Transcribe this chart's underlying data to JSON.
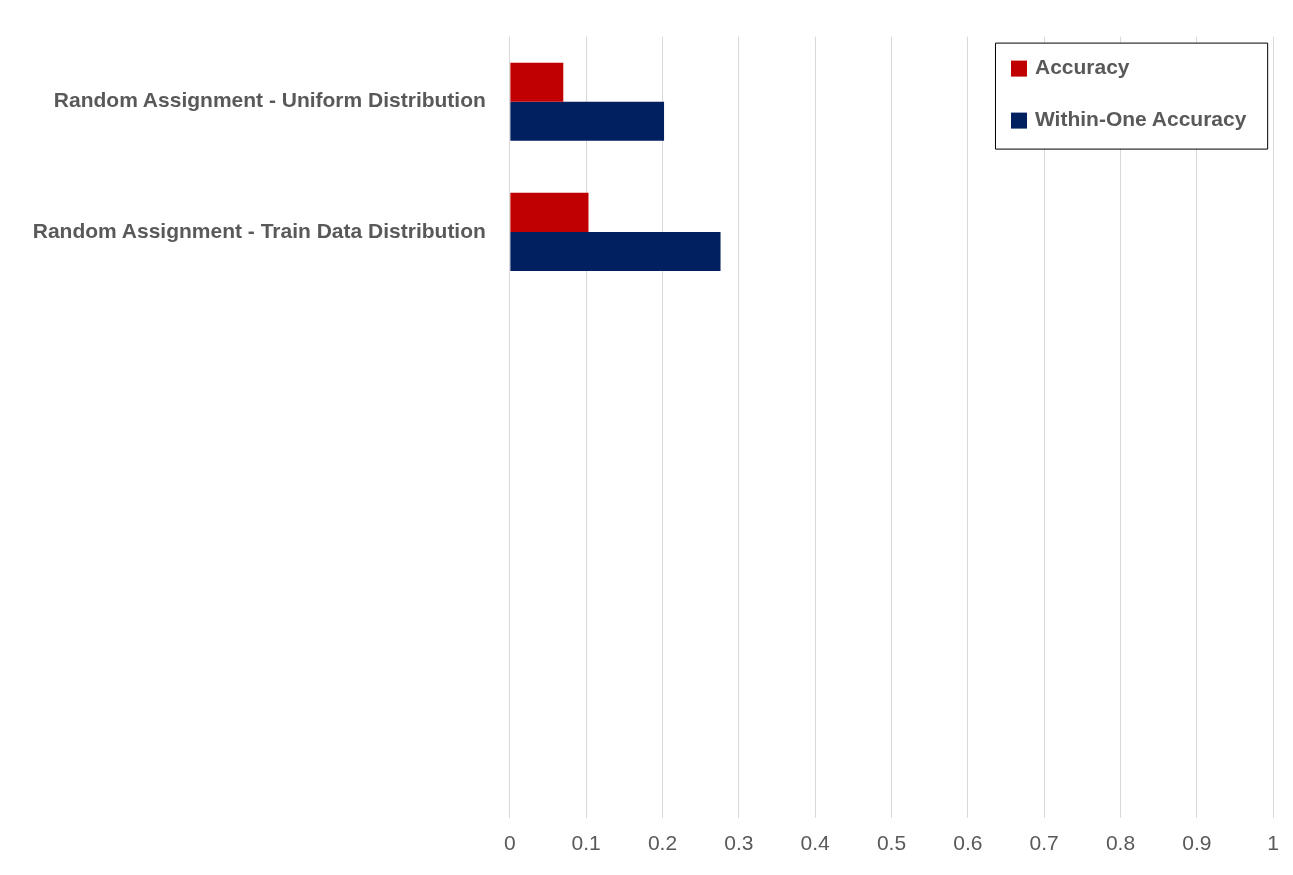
{
  "chart_data": {
    "type": "bar",
    "orientation": "horizontal",
    "categories": [
      "Random Assignment - Uniform Distribution",
      "Random Assignment - Train Data Distribution",
      null,
      null,
      null,
      null
    ],
    "series": [
      {
        "name": "Accuracy",
        "color": "#c00000",
        "values": [
          0.07,
          0.103,
          null,
          null,
          null,
          null
        ]
      },
      {
        "name": "Within-One Accuracy",
        "color": "#002060",
        "values": [
          0.202,
          0.276,
          null,
          null,
          null,
          null
        ]
      }
    ],
    "xlim": [
      0,
      1
    ],
    "xticks": [
      0,
      0.1,
      0.2,
      0.3,
      0.4,
      0.5,
      0.6,
      0.7,
      0.8,
      0.9,
      1
    ],
    "grid": "x",
    "legend": "top right"
  }
}
